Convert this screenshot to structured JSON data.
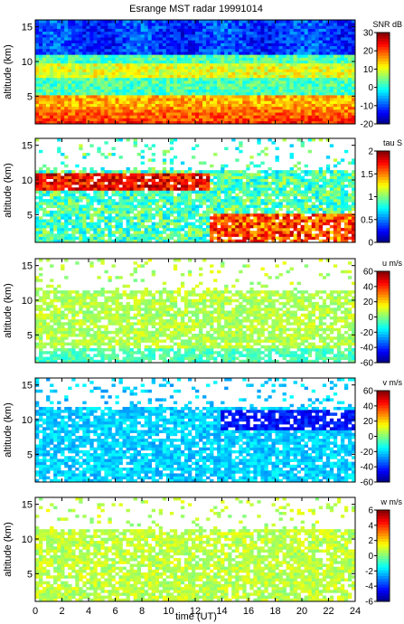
{
  "title": "Esrange MST radar 19991014",
  "xlabel": "time (UT)",
  "chart_data": [
    {
      "type": "heatmap",
      "title": "Esrange MST radar 19991014",
      "ylabel": "altitude (km)",
      "colorbar_label": "SNR dB",
      "colorbar_range": [
        -20,
        30
      ],
      "colorbar_ticks": [
        -20,
        -10,
        0,
        10,
        20,
        30
      ],
      "x_ticks": [
        0,
        2,
        4,
        6,
        8,
        10,
        12,
        14,
        16,
        18,
        20,
        22,
        24
      ],
      "xlim": [
        0,
        24
      ],
      "ylim": [
        1,
        16
      ],
      "y_ticks": [
        5,
        10,
        15
      ],
      "colormap": "jet",
      "pattern": "strong echoes (~20-30 dB) below ~4 km, bands near 5 and 9 km, weak (~-15 dB) above 11 km"
    },
    {
      "type": "heatmap",
      "ylabel": "altitude (km)",
      "colorbar_label": "tau S",
      "colorbar_range": [
        0,
        2
      ],
      "colorbar_ticks": [
        0,
        0.5,
        1,
        1.5,
        2
      ],
      "x_ticks": [
        0,
        2,
        4,
        6,
        8,
        10,
        12,
        14,
        16,
        18,
        20,
        22,
        24
      ],
      "xlim": [
        0,
        24
      ],
      "ylim": [
        1,
        16
      ],
      "y_ticks": [
        5,
        10,
        15
      ],
      "colormap": "jet",
      "pattern": "large values (~1.5-2 s) near 9-11 km before 12 UT and low altitudes after 14 UT; mostly ~0.8-1.2 s elsewhere"
    },
    {
      "type": "heatmap",
      "ylabel": "altitude (km)",
      "colorbar_label": "u m/s",
      "colorbar_range": [
        -60,
        60
      ],
      "colorbar_ticks": [
        -60,
        -40,
        -20,
        0,
        20,
        40,
        60
      ],
      "x_ticks": [
        0,
        2,
        4,
        6,
        8,
        10,
        12,
        14,
        16,
        18,
        20,
        22,
        24
      ],
      "xlim": [
        0,
        24
      ],
      "ylim": [
        1,
        16
      ],
      "y_ticks": [
        5,
        10,
        15
      ],
      "colormap": "jet",
      "pattern": "mostly near 0 to +10 m/s, slightly negative below 3 km"
    },
    {
      "type": "heatmap",
      "ylabel": "altitude (km)",
      "colorbar_label": "v m/s",
      "colorbar_range": [
        -60,
        60
      ],
      "colorbar_ticks": [
        -60,
        -40,
        -20,
        0,
        20,
        40,
        60
      ],
      "x_ticks": [
        0,
        2,
        4,
        6,
        8,
        10,
        12,
        14,
        16,
        18,
        20,
        22,
        24
      ],
      "xlim": [
        0,
        24
      ],
      "ylim": [
        1,
        16
      ],
      "y_ticks": [
        5,
        10,
        15
      ],
      "colormap": "jet",
      "pattern": "negative (~-20 m/s) throughout, strongest (~-45 m/s) near 9-11 km after 16 UT"
    },
    {
      "type": "heatmap",
      "ylabel": "altitude (km)",
      "colorbar_label": "w m/s",
      "colorbar_range": [
        -6,
        6
      ],
      "colorbar_ticks": [
        -6,
        -4,
        -2,
        0,
        2,
        4,
        6
      ],
      "x_ticks": [
        0,
        2,
        4,
        6,
        8,
        10,
        12,
        14,
        16,
        18,
        20,
        22,
        24
      ],
      "xlim": [
        0,
        24
      ],
      "ylim": [
        1,
        16
      ],
      "y_ticks": [
        5,
        10,
        15
      ],
      "colormap": "jet",
      "pattern": "near 0 to +1 m/s everywhere"
    }
  ]
}
